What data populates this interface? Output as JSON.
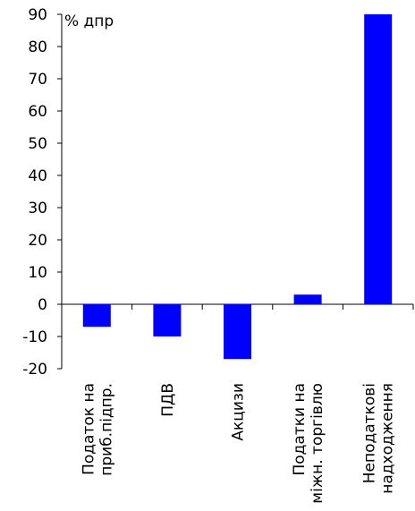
{
  "chart_data": {
    "type": "bar",
    "ylabel": "% дпр",
    "ylim": [
      -20,
      90
    ],
    "yticks": [
      90,
      80,
      70,
      60,
      50,
      40,
      30,
      20,
      10,
      0,
      -10,
      -20
    ],
    "grid": false,
    "bar_color": "#0000FF",
    "categories": [
      [
        "Податок на",
        "приб.підпр."
      ],
      [
        "ПДВ"
      ],
      [
        "Акцизи"
      ],
      [
        "Податки на",
        "міжн. торгівлю"
      ],
      [
        "Неподаткові",
        "надходження"
      ]
    ],
    "values": [
      -7,
      -10,
      -17,
      3,
      90
    ]
  }
}
